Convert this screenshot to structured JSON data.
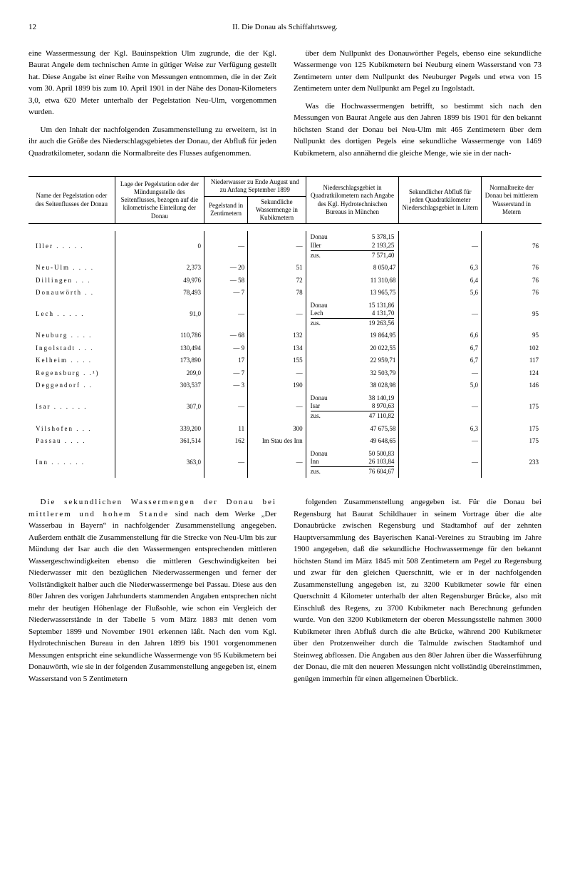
{
  "header": {
    "page_number": "12",
    "running_title": "II. Die Donau als Schiffahrtsweg."
  },
  "top_text": {
    "left_p1": "eine Wassermessung der Kgl. Bauinspektion Ulm zugrunde, die der Kgl. Baurat Angele dem technischen Amte in gütiger Weise zur Verfügung gestellt hat. Diese Angabe ist einer Reihe von Messungen entnommen, die in der Zeit vom 30. April 1899 bis zum 10. April 1901 in der Nähe des Donau-Kilometers 3,0, etwa 620 Meter unterhalb der Pegelstation Neu-Ulm, vorgenommen wurden.",
    "left_p2": "Um den Inhalt der nachfolgenden Zusammenstellung zu erweitern, ist in ihr auch die Größe des Niederschlagsgebietes der Donau, der Abfluß für jeden Quadratkilometer, sodann die Normalbreite des Flusses aufgenommen.",
    "right_p1": "über dem Nullpunkt des Donauwörther Pegels, ebenso eine sekundliche Wassermenge von 125 Kubikmetern bei Neuburg einem Wasserstand von 73 Zentimetern unter dem Nullpunkt des Neuburger Pegels und etwa von 15 Zentimetern unter dem Nullpunkt am Pegel zu Ingolstadt.",
    "right_p2": "Was die Hochwassermengen betrifft, so bestimmt sich nach den Messungen von Baurat Angele aus den Jahren 1899 bis 1901 für den bekannt höchsten Stand der Donau bei Neu-Ulm mit 465 Zentimetern über dem Nullpunkt des dortigen Pegels eine sekundliche Wassermenge von 1469 Kubikmetern, also annähernd die gleiche Menge, wie sie in der nach-"
  },
  "table": {
    "head": {
      "col1": "Name der Pegelstation oder des Seitenflusses der Donau",
      "col2": "Lage der Pegelstation oder der Mündungsstelle des Seitenflusses, bezogen auf die kilometrische Einteilung der Donau",
      "col3_top": "Niederwasser zu Ende August und zu Anfang September 1899",
      "col3a": "Pegelstand in Zentimetern",
      "col3b": "Sekundliche Wassermenge in Kubikmetern",
      "col4": "Niederschlagsgebiet in Quadratkilometern nach Angabe des Kgl. Hydrotechnischen Bureaus in München",
      "col5": "Sekundlicher Abfluß für jeden Quadratkilometer Niederschlagsgebiet in Litern",
      "col6": "Normalbreite der Donau bei mittlerem Wasserstand in Metern"
    },
    "rows": [
      {
        "name": "Iller . . . . .",
        "km": "0",
        "pegel": "—",
        "menge": "—",
        "catch": {
          "lines": [
            [
              "Donau",
              "5 378,15"
            ],
            [
              "Iller",
              "2 193,25"
            ]
          ],
          "sum": [
            "zus.",
            "7 571,40"
          ]
        },
        "abfluss": "—",
        "breite": "76"
      },
      {
        "name": "Neu-Ulm . . . .",
        "km": "2,373",
        "pegel": "— 20",
        "menge": "51",
        "catch": "8 050,47",
        "abfluss": "6,3",
        "breite": "76"
      },
      {
        "name": "Dillingen . . .",
        "km": "49,976",
        "pegel": "— 58",
        "menge": "72",
        "catch": "11 310,68",
        "abfluss": "6,4",
        "breite": "76"
      },
      {
        "name": "Donauwörth . .",
        "km": "78,493",
        "pegel": "—  7",
        "menge": "78",
        "catch": "13 965,75",
        "abfluss": "5,6",
        "breite": "76"
      },
      {
        "name": "Lech . . . . .",
        "km": "91,0",
        "pegel": "—",
        "menge": "—",
        "catch": {
          "lines": [
            [
              "Donau",
              "15 131,86"
            ],
            [
              "Lech",
              "4 131,70"
            ]
          ],
          "sum": [
            "zus.",
            "19 263,56"
          ]
        },
        "abfluss": "—",
        "breite": "95"
      },
      {
        "name": "Neuburg . . . .",
        "km": "110,786",
        "pegel": "— 68",
        "menge": "132",
        "catch": "19 864,95",
        "abfluss": "6,6",
        "breite": "95"
      },
      {
        "name": "Ingolstadt . . .",
        "km": "130,494",
        "pegel": "—  9",
        "menge": "134",
        "catch": "20 022,55",
        "abfluss": "6,7",
        "breite": "102"
      },
      {
        "name": "Kelheim . . . .",
        "km": "173,890",
        "pegel": "17",
        "menge": "155",
        "catch": "22 959,71",
        "abfluss": "6,7",
        "breite": "117"
      },
      {
        "name": "Regensburg . .¹)",
        "km": "209,0",
        "pegel": "—  7",
        "menge": "—",
        "catch": "32 503,79",
        "abfluss": "—",
        "breite": "124"
      },
      {
        "name": "Deggendorf . .",
        "km": "303,537",
        "pegel": "—  3",
        "menge": "190",
        "catch": "38 028,98",
        "abfluss": "5,0",
        "breite": "146"
      },
      {
        "name": "Isar . . . . . .",
        "km": "307,0",
        "pegel": "—",
        "menge": "—",
        "catch": {
          "lines": [
            [
              "Donau",
              "38 140,19"
            ],
            [
              "Isar",
              "8 970,63"
            ]
          ],
          "sum": [
            "zus.",
            "47 110,82"
          ]
        },
        "abfluss": "—",
        "breite": "175"
      },
      {
        "name": "Vilshofen . . .",
        "km": "339,200",
        "pegel": "11",
        "menge": "300",
        "catch": "47 675,58",
        "abfluss": "6,3",
        "breite": "175"
      },
      {
        "name": "Passau . . . .",
        "km": "361,514",
        "pegel": "162",
        "menge": "Im Stau des Inn",
        "catch": "49 648,65",
        "abfluss": "—",
        "breite": "175"
      },
      {
        "name": "Inn . . . . . .",
        "km": "363,0",
        "pegel": "—",
        "menge": "—",
        "catch": {
          "lines": [
            [
              "Donau",
              "50 500,83"
            ],
            [
              "Inn",
              "26 103,84"
            ]
          ],
          "sum": [
            "zus.",
            "76 604,67"
          ]
        },
        "abfluss": "—",
        "breite": "233"
      }
    ]
  },
  "bottom_text": {
    "left_p1_lead": "Die sekundlichen Wassermengen der Donau bei mittlerem und hohem Stande",
    "left_p1_rest": " sind nach dem Werke „Der Wasserbau in Bayern“ in nachfolgender Zusammenstellung angegeben. Außerdem enthält die Zusammenstellung für die Strecke von Neu-Ulm bis zur Mündung der Isar auch die den Wassermengen entsprechenden mittleren Wassergeschwindigkeiten ebenso die mittleren Geschwindigkeiten bei Niederwasser mit den bezüglichen Niederwassermengen und ferner der Vollständigkeit halber auch die Niederwassermenge bei Passau. Diese aus den 80er Jahren des vorigen Jahrhunderts stammenden Angaben entsprechen nicht mehr der heutigen Höhenlage der Flußsohle, wie schon ein Vergleich der Niederwasserstände in der Tabelle 5 vom März 1883 mit denen vom September 1899 und November 1901 erkennen läßt. Nach den vom Kgl. Hydrotechnischen Bureau in den Jahren 1899 bis 1901 vorgenommenen Messungen entspricht eine sekundliche Wassermenge von 95 Kubikmetern bei Donauwörth, wie sie in der folgenden Zusammenstellung angegeben ist, einem Wasserstand von 5 Zentimetern",
    "right_p1": "folgenden Zusammenstellung angegeben ist. Für die Donau bei Regensburg hat Baurat Schildhauer in seinem Vortrage über die alte Donaubrücke zwischen Regensburg und Stadtamhof auf der zehnten Hauptversammlung des Bayerischen Kanal-Vereines zu Straubing im Jahre 1900 angegeben, daß die sekundliche Hochwassermenge für den bekannt höchsten Stand im März 1845 mit 508 Zentimetern am Pegel zu Regensburg und zwar für den gleichen Querschnitt, wie er in der nachfolgenden Zusammenstellung angegeben ist, zu 3200 Kubikmeter sowie für einen Querschnitt 4 Kilometer unterhalb der alten Regensburger Brücke, also mit Einschluß des Regens, zu 3700 Kubikmeter nach Berechnung gefunden wurde. Von den 3200 Kubikmetern der oberen Messungsstelle nahmen 3000 Kubikmeter ihren Abfluß durch die alte Brücke, während 200 Kubikmeter über den Protzenweiher durch die Talmulde zwischen Stadtamhof und Steinweg abflossen. Die Angaben aus den 80er Jahren über die Wasserführung der Donau, die mit den neueren Messungen nicht vollständig übereinstimmen, genügen immerhin für einen allgemeinen Überblick."
  }
}
